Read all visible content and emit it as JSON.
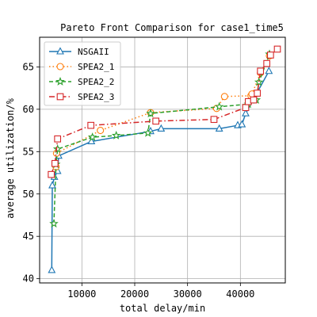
{
  "chart_data": {
    "type": "line",
    "title": "Pareto Front Comparison for case1_time5",
    "xlabel": "total delay/min",
    "ylabel": "average utilization/%",
    "xlim": [
      2000,
      48500
    ],
    "ylim": [
      39.5,
      68.5
    ],
    "xticks": [
      10000,
      20000,
      30000,
      40000
    ],
    "yticks": [
      40,
      45,
      50,
      55,
      60,
      65
    ],
    "grid": true,
    "legend_position": "top-left",
    "series": [
      {
        "name": "NSGAII",
        "color": "#1f77b4",
        "dash": "solid",
        "marker": "triangle",
        "x": [
          4300,
          4400,
          4800,
          5400,
          5600,
          11800,
          23000,
          25000,
          36000,
          39500,
          40300,
          41000,
          45400
        ],
        "y": [
          41.0,
          51.0,
          52.0,
          52.7,
          54.5,
          56.2,
          57.4,
          57.7,
          57.7,
          58.1,
          58.2,
          59.5,
          64.5
        ]
      },
      {
        "name": "SPEA2_1",
        "color": "#ff7f0e",
        "dash": "dot",
        "marker": "circle",
        "x": [
          5100,
          5200,
          13500,
          23000,
          35500,
          37000,
          42000,
          42200,
          43800,
          45500
        ],
        "y": [
          53.2,
          54.8,
          57.5,
          59.6,
          60.1,
          61.5,
          61.6,
          61.8,
          64.3,
          66.3
        ]
      },
      {
        "name": "SPEA2_2",
        "color": "#2ca02c",
        "dash": "dash",
        "marker": "star",
        "x": [
          4700,
          5100,
          5400,
          12000,
          16500,
          22500,
          23000,
          36000,
          41500,
          43000,
          43500,
          45500
        ],
        "y": [
          46.5,
          53.5,
          55.3,
          56.7,
          56.9,
          57.2,
          59.5,
          60.3,
          60.6,
          61.1,
          63.2,
          66.5
        ]
      },
      {
        "name": "SPEA2_3",
        "color": "#d62728",
        "dash": "dashdot",
        "marker": "square",
        "x": [
          4200,
          4900,
          5400,
          11700,
          24000,
          35000,
          41000,
          41500,
          42500,
          43200,
          43800,
          45000,
          45700,
          47000
        ],
        "y": [
          52.3,
          53.6,
          56.5,
          58.1,
          58.6,
          58.8,
          60.2,
          60.9,
          61.1,
          61.9,
          64.5,
          65.4,
          66.4,
          67.1
        ]
      }
    ]
  }
}
